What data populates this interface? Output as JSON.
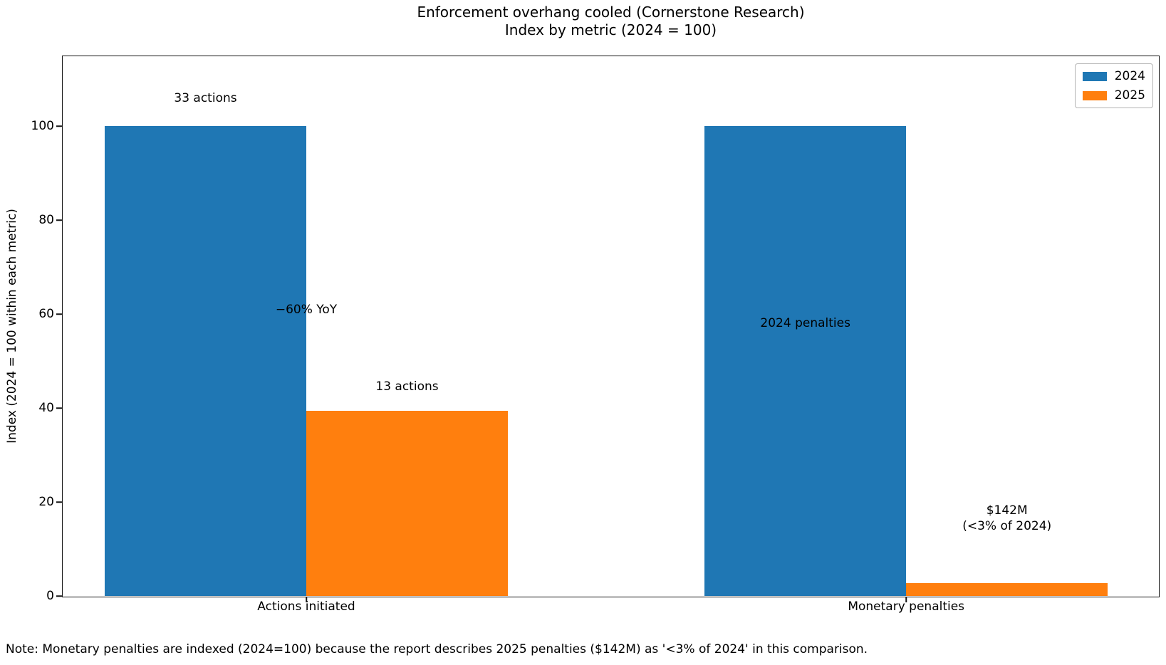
{
  "chart_data": {
    "type": "bar",
    "title_line1": "Enforcement overhang cooled (Cornerstone Research)",
    "title_line2": "Index by metric (2024 = 100)",
    "categories": [
      "Actions initiated",
      "Monetary penalties"
    ],
    "series": [
      {
        "name": "2024",
        "color": "#1f77b4",
        "values": [
          100,
          100
        ]
      },
      {
        "name": "2025",
        "color": "#ff7f0e",
        "values": [
          39.4,
          2.8
        ]
      }
    ],
    "xlabel": "",
    "ylabel": "Index (2024 = 100 within each metric)",
    "ylim": [
      0,
      114.9
    ],
    "yticks": [
      0,
      20,
      40,
      60,
      80,
      100
    ],
    "xlim": [
      -0.406,
      1.42
    ],
    "bar_width": 0.336,
    "grid": false,
    "legend_position": "upper right",
    "annotations": [
      {
        "lines": [
          "33 actions"
        ],
        "x": -0.168,
        "y": 106
      },
      {
        "lines": [
          "−60% YoY"
        ],
        "x": 0.0,
        "y": 61
      },
      {
        "lines": [
          "13 actions"
        ],
        "x": 0.168,
        "y": 44.6
      },
      {
        "lines": [
          "2024 penalties"
        ],
        "x": 0.832,
        "y": 58
      },
      {
        "lines": [
          "$142M",
          "(<3% of 2024)"
        ],
        "x": 1.168,
        "y": 16.5
      }
    ],
    "note": "Note: Monetary penalties are indexed (2024=100) because the report describes 2025 penalties ($142M) as '<3% of 2024' in this comparison."
  }
}
